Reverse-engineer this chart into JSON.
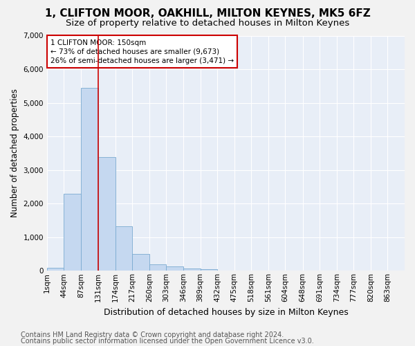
{
  "title1": "1, CLIFTON MOOR, OAKHILL, MILTON KEYNES, MK5 6FZ",
  "title2": "Size of property relative to detached houses in Milton Keynes",
  "xlabel": "Distribution of detached houses by size in Milton Keynes",
  "ylabel": "Number of detached properties",
  "footer1": "Contains HM Land Registry data © Crown copyright and database right 2024.",
  "footer2": "Contains public sector information licensed under the Open Government Licence v3.0.",
  "bar_color": "#c5d8f0",
  "bar_edge_color": "#7aaad0",
  "annotation_box_text": "1 CLIFTON MOOR: 150sqm\n← 73% of detached houses are smaller (9,673)\n26% of semi-detached houses are larger (3,471) →",
  "vline_color": "#cc0000",
  "categories": [
    "1sqm",
    "44sqm",
    "87sqm",
    "131sqm",
    "174sqm",
    "217sqm",
    "260sqm",
    "303sqm",
    "346sqm",
    "389sqm",
    "432sqm",
    "475sqm",
    "518sqm",
    "561sqm",
    "604sqm",
    "648sqm",
    "691sqm",
    "734sqm",
    "777sqm",
    "820sqm",
    "863sqm"
  ],
  "bin_edges": [
    1,
    44,
    87,
    131,
    174,
    217,
    260,
    303,
    346,
    389,
    432,
    475,
    518,
    561,
    604,
    648,
    691,
    734,
    777,
    820,
    863,
    906
  ],
  "values": [
    80,
    2300,
    5450,
    3380,
    1320,
    500,
    200,
    120,
    70,
    50,
    0,
    0,
    0,
    0,
    0,
    0,
    0,
    0,
    0,
    0,
    0
  ],
  "vline_x_bin_index": 3,
  "ylim": [
    0,
    7000
  ],
  "yticks": [
    0,
    1000,
    2000,
    3000,
    4000,
    5000,
    6000,
    7000
  ],
  "bg_color": "#e8eef7",
  "grid_color": "#ffffff",
  "fig_bg_color": "#f2f2f2",
  "title1_fontsize": 11,
  "title2_fontsize": 9.5,
  "xlabel_fontsize": 9,
  "ylabel_fontsize": 8.5,
  "tick_fontsize": 7.5,
  "footer_fontsize": 7
}
